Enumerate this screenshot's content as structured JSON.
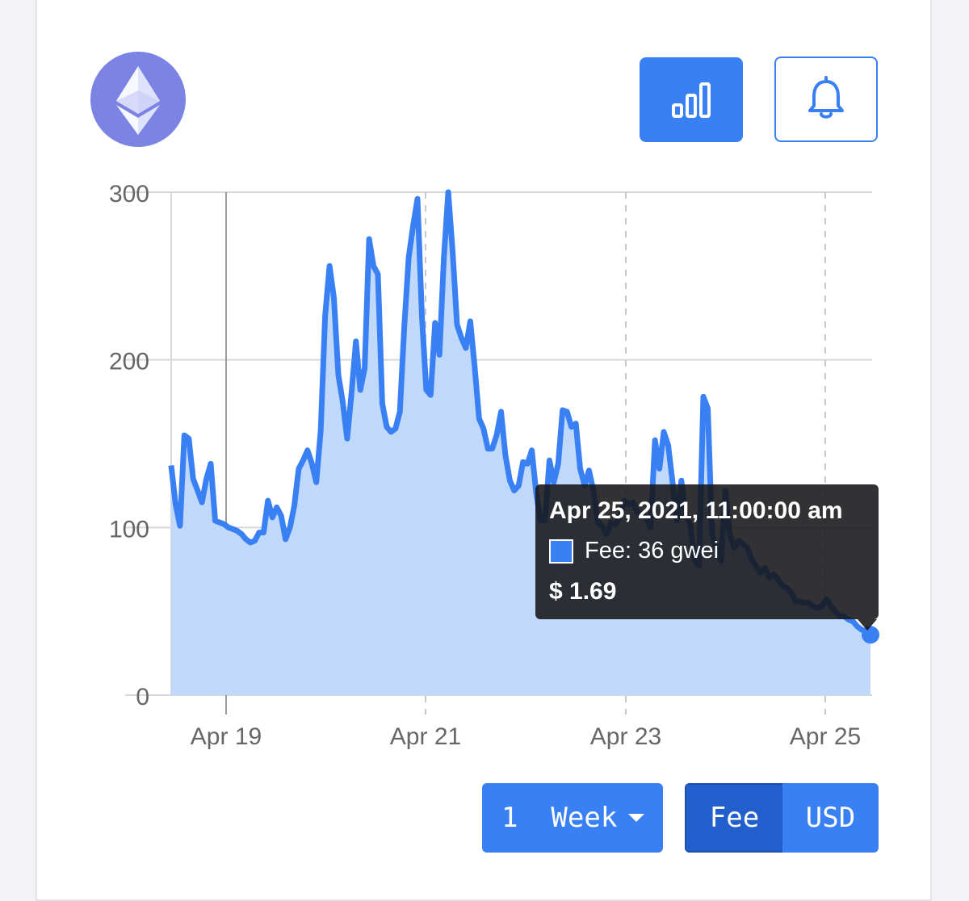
{
  "icons": {
    "logo": "ethereum-logo",
    "stats_button": "bar-chart-icon",
    "alert_button": "bell-icon",
    "dropdown_caret": "caret-down-icon"
  },
  "colors": {
    "accent": "#3a80f5",
    "accent_dark": "#235fcc",
    "logo_bg": "#7b83e3",
    "area_fill": "#c0d8fa",
    "line": "#3a80f5"
  },
  "controls": {
    "range_label": "1  Week",
    "toggle_options": [
      "Fee",
      "USD"
    ],
    "toggle_selected": "Fee"
  },
  "tooltip": {
    "title": "Apr 25, 2021, 11:00:00 am",
    "series_line": "Fee: 36 gwei",
    "usd_line": "$ 1.69"
  },
  "chart_data": {
    "type": "area",
    "title": "",
    "xlabel": "",
    "ylabel": "",
    "ylim": [
      0,
      300
    ],
    "y_ticks": [
      "0",
      "100",
      "200",
      "300"
    ],
    "x_ticks": [
      "Apr 19",
      "Apr 21",
      "Apr 23",
      "Apr 25"
    ],
    "x_start": "Apr 18, 2021, 12:00 pm",
    "x_end": "Apr 25, 2021, 11:00 am",
    "grid": true,
    "series": [
      {
        "name": "Fee",
        "unit": "gwei",
        "values": [
          137,
          114,
          101,
          155,
          153,
          129,
          122,
          115,
          129,
          138,
          104,
          103,
          102,
          100,
          99,
          98,
          96,
          93,
          91,
          92,
          97,
          97,
          116,
          106,
          112,
          107,
          93,
          100,
          113,
          135,
          140,
          146,
          138,
          127,
          158,
          226,
          256,
          237,
          191,
          175,
          153,
          180,
          211,
          182,
          195,
          272,
          256,
          251,
          174,
          160,
          157,
          159,
          169,
          220,
          261,
          280,
          296,
          226,
          182,
          179,
          222,
          203,
          261,
          300,
          264,
          221,
          213,
          207,
          223,
          196,
          165,
          159,
          147,
          147,
          155,
          169,
          143,
          128,
          122,
          125,
          139,
          138,
          146,
          120,
          104,
          104,
          140,
          127,
          138,
          170,
          169,
          160,
          162,
          135,
          125,
          134,
          122,
          103,
          101,
          96,
          103,
          102,
          106,
          116,
          114,
          115,
          109,
          108,
          106,
          100,
          152,
          135,
          157,
          149,
          127,
          104,
          128,
          107,
          102,
          81,
          77,
          178,
          171,
          96,
          87,
          80,
          122,
          96,
          88,
          92,
          90,
          88,
          81,
          77,
          73,
          76,
          70,
          72,
          69,
          65,
          64,
          61,
          56,
          56,
          55,
          55,
          53,
          52,
          53,
          57,
          53,
          50,
          47,
          47,
          45,
          44,
          41,
          39,
          38,
          36
        ]
      }
    ],
    "highlight": {
      "x": "Apr 25, 2021, 11:00:00 am",
      "y": 36
    }
  }
}
